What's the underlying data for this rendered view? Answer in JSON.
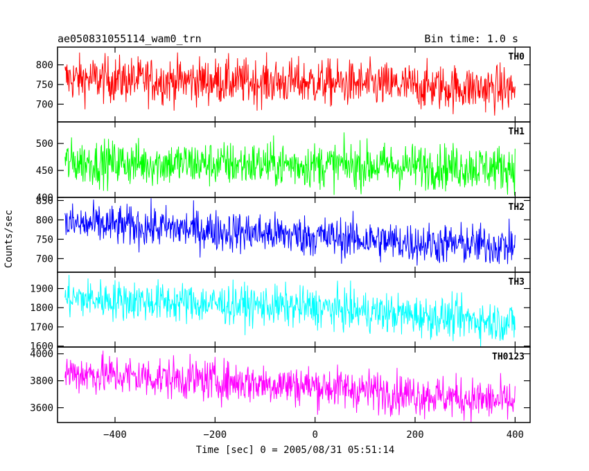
{
  "header": {
    "title": "ae050831055114_wam0_trn",
    "bin_time": "Bin time: 1.0 s"
  },
  "chart_data": {
    "type": "line",
    "title": "ae050831055114_wam0_trn",
    "xlabel": "Time [sec] 0 = 2005/08/31 05:51:14",
    "ylabel": "Counts/sec",
    "xlim": [
      -515,
      430
    ],
    "x_ticks": [
      -400,
      -200,
      0,
      200,
      400
    ],
    "x_range": [
      -500,
      400
    ],
    "bin_time_s": 1.0,
    "panels": [
      {
        "name": "TH0",
        "color": "#ff0000",
        "ylim": [
          655,
          845
        ],
        "y_ticks": [
          700,
          750,
          800
        ],
        "trend": [
          [
            -500,
            765
          ],
          [
            -300,
            760
          ],
          [
            0,
            755
          ],
          [
            200,
            745
          ],
          [
            400,
            738
          ]
        ],
        "spread": 42
      },
      {
        "name": "TH1",
        "color": "#00ff00",
        "ylim": [
          400,
          540
        ],
        "y_ticks": [
          400,
          450,
          500
        ],
        "trend": [
          [
            -500,
            465
          ],
          [
            -300,
            463
          ],
          [
            0,
            460
          ],
          [
            200,
            458
          ],
          [
            400,
            455
          ]
        ],
        "spread": 30
      },
      {
        "name": "TH2",
        "color": "#0000ff",
        "ylim": [
          665,
          858
        ],
        "y_ticks": [
          700,
          750,
          800,
          850
        ],
        "trend": [
          [
            -500,
            790
          ],
          [
            -300,
            780
          ],
          [
            -200,
            772
          ],
          [
            0,
            758
          ],
          [
            200,
            740
          ],
          [
            400,
            733
          ]
        ],
        "spread": 38
      },
      {
        "name": "TH3",
        "color": "#00ffff",
        "ylim": [
          1595,
          1985
        ],
        "y_ticks": [
          1600,
          1700,
          1800,
          1900
        ],
        "trend": [
          [
            -500,
            1850
          ],
          [
            -300,
            1830
          ],
          [
            0,
            1800
          ],
          [
            200,
            1760
          ],
          [
            400,
            1720
          ]
        ],
        "spread": 75
      },
      {
        "name": "TH0123",
        "color": "#ff00ff",
        "ylim": [
          3490,
          4050
        ],
        "y_ticks": [
          3600,
          3800,
          4000
        ],
        "trend": [
          [
            -500,
            3860
          ],
          [
            -300,
            3820
          ],
          [
            0,
            3760
          ],
          [
            200,
            3700
          ],
          [
            400,
            3640
          ]
        ],
        "spread": 110
      }
    ]
  }
}
